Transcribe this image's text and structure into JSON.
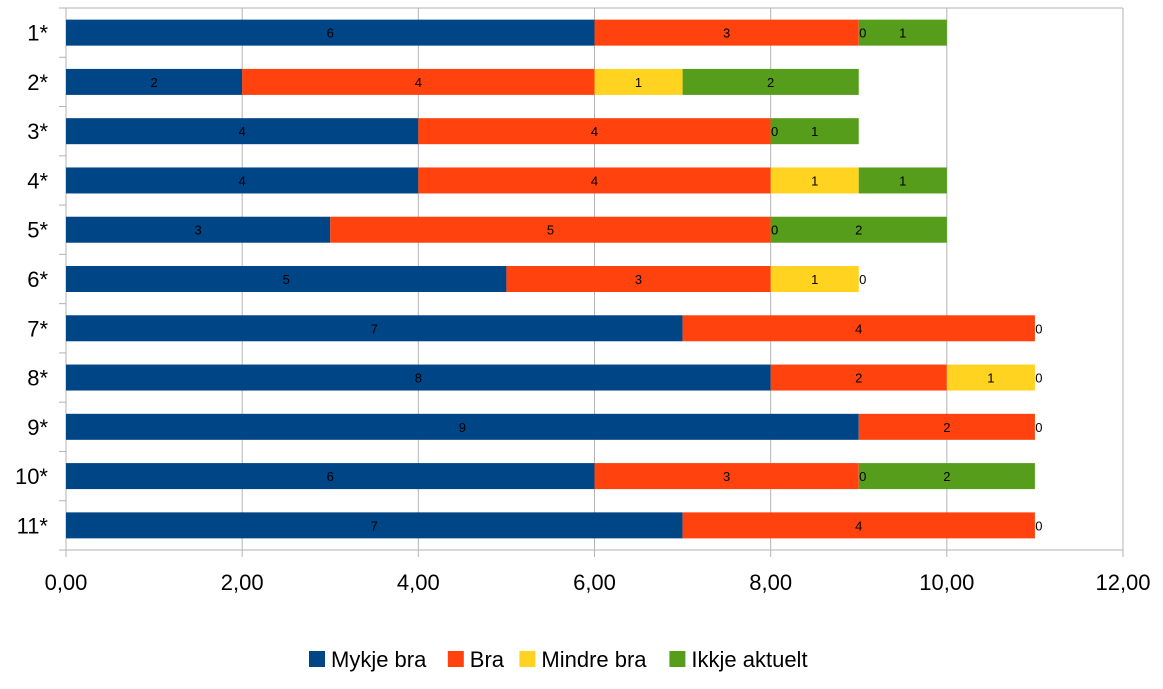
{
  "chart_data": {
    "type": "bar",
    "orientation": "horizontal",
    "stacked": true,
    "title": "",
    "xlabel": "",
    "ylabel": "",
    "categories": [
      "1*",
      "2*",
      "3*",
      "4*",
      "5*",
      "6*",
      "7*",
      "8*",
      "9*",
      "10*",
      "11*"
    ],
    "series": [
      {
        "name": "Mykje bra",
        "color": "#004586",
        "values": [
          6,
          2,
          4,
          4,
          3,
          5,
          7,
          8,
          9,
          6,
          7
        ]
      },
      {
        "name": "Bra",
        "color": "#ff420e",
        "values": [
          3,
          4,
          4,
          4,
          5,
          3,
          4,
          2,
          2,
          3,
          4
        ]
      },
      {
        "name": "Mindre bra",
        "color": "#ffd320",
        "values": [
          0,
          1,
          0,
          1,
          0,
          1,
          0,
          1,
          0,
          0,
          0
        ]
      },
      {
        "name": "Ikkje aktuelt",
        "color": "#579d1c",
        "values": [
          1,
          2,
          1,
          1,
          2,
          0,
          0,
          0,
          0,
          2,
          0
        ]
      }
    ],
    "xlim": [
      0,
      12
    ],
    "xticks": [
      0,
      2,
      4,
      6,
      8,
      10,
      12
    ],
    "xtick_labels": [
      "0,00",
      "2,00",
      "4,00",
      "6,00",
      "8,00",
      "10,00",
      "12,00"
    ],
    "grid": true,
    "legend_position": "bottom"
  }
}
